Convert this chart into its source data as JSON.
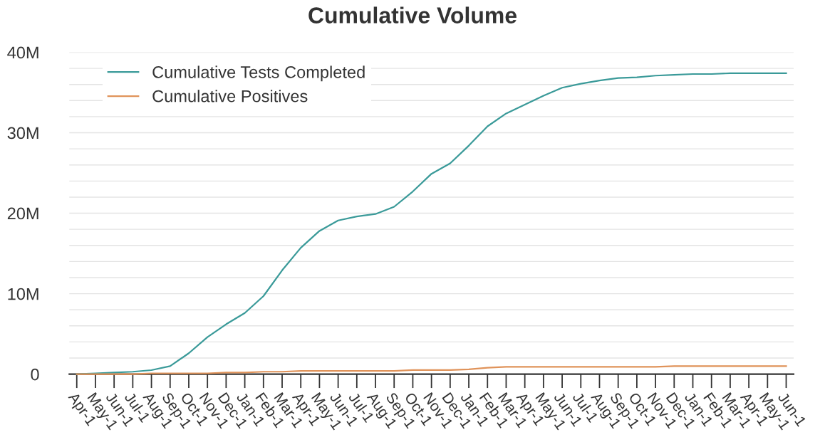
{
  "chart_data": {
    "type": "line",
    "title": "Cumulative Volume",
    "categories": [
      "Apr-1",
      "May-1",
      "Jun-1",
      "Jul-1",
      "Aug-1",
      "Sep-1",
      "Oct-1",
      "Nov-1",
      "Dec-1",
      "Jan-1",
      "Feb-1",
      "Mar-1",
      "Apr-1",
      "May-1",
      "Jun-1",
      "Jul-1",
      "Aug-1",
      "Sep-1",
      "Oct-1",
      "Nov-1",
      "Dec-1",
      "Jan-1",
      "Feb-1",
      "Mar-1",
      "Apr-1",
      "May-1",
      "Jun-1",
      "Jul-1",
      "Aug-1",
      "Sep-1",
      "Oct-1",
      "Nov-1",
      "Dec-1",
      "Jan-1",
      "Feb-1",
      "Mar-1",
      "Apr-1",
      "May-1",
      "Jun-1"
    ],
    "series": [
      {
        "name": "Cumulative Tests Completed",
        "color": "#3a9a99",
        "values": [
          0,
          100000,
          200000,
          300000,
          500000,
          1000000,
          2600000,
          4600000,
          6200000,
          7600000,
          9700000,
          12900000,
          15700000,
          17800000,
          19100000,
          19600000,
          19900000,
          20800000,
          22700000,
          24900000,
          26200000,
          28400000,
          30800000,
          32400000,
          33500000,
          34600000,
          35600000,
          36100000,
          36500000,
          36800000,
          36900000,
          37100000,
          37200000,
          37300000,
          37300000,
          37400000,
          37400000,
          37400000,
          37400000
        ]
      },
      {
        "name": "Cumulative Positives",
        "color": "#e0935a",
        "values": [
          0,
          0,
          0,
          0,
          100000,
          100000,
          100000,
          100000,
          200000,
          200000,
          300000,
          300000,
          400000,
          400000,
          400000,
          400000,
          400000,
          400000,
          500000,
          500000,
          500000,
          600000,
          800000,
          900000,
          900000,
          900000,
          900000,
          900000,
          900000,
          900000,
          900000,
          900000,
          1000000,
          1000000,
          1000000,
          1000000,
          1000000,
          1000000,
          1000000
        ]
      }
    ],
    "ylim": [
      0,
      40000000
    ],
    "yticks": [
      {
        "value": 0,
        "label": "0"
      },
      {
        "value": 2000000,
        "label": null
      },
      {
        "value": 4000000,
        "label": null
      },
      {
        "value": 6000000,
        "label": null
      },
      {
        "value": 8000000,
        "label": null
      },
      {
        "value": 10000000,
        "label": "10M"
      },
      {
        "value": 12000000,
        "label": null
      },
      {
        "value": 14000000,
        "label": null
      },
      {
        "value": 16000000,
        "label": null
      },
      {
        "value": 18000000,
        "label": null
      },
      {
        "value": 20000000,
        "label": "20M"
      },
      {
        "value": 22000000,
        "label": null
      },
      {
        "value": 24000000,
        "label": null
      },
      {
        "value": 26000000,
        "label": null
      },
      {
        "value": 28000000,
        "label": null
      },
      {
        "value": 30000000,
        "label": "30M"
      },
      {
        "value": 32000000,
        "label": null
      },
      {
        "value": 34000000,
        "label": null
      },
      {
        "value": 36000000,
        "label": null
      },
      {
        "value": 38000000,
        "label": null
      },
      {
        "value": 40000000,
        "label": "40M"
      }
    ],
    "grid": "y",
    "legend": "top left"
  }
}
